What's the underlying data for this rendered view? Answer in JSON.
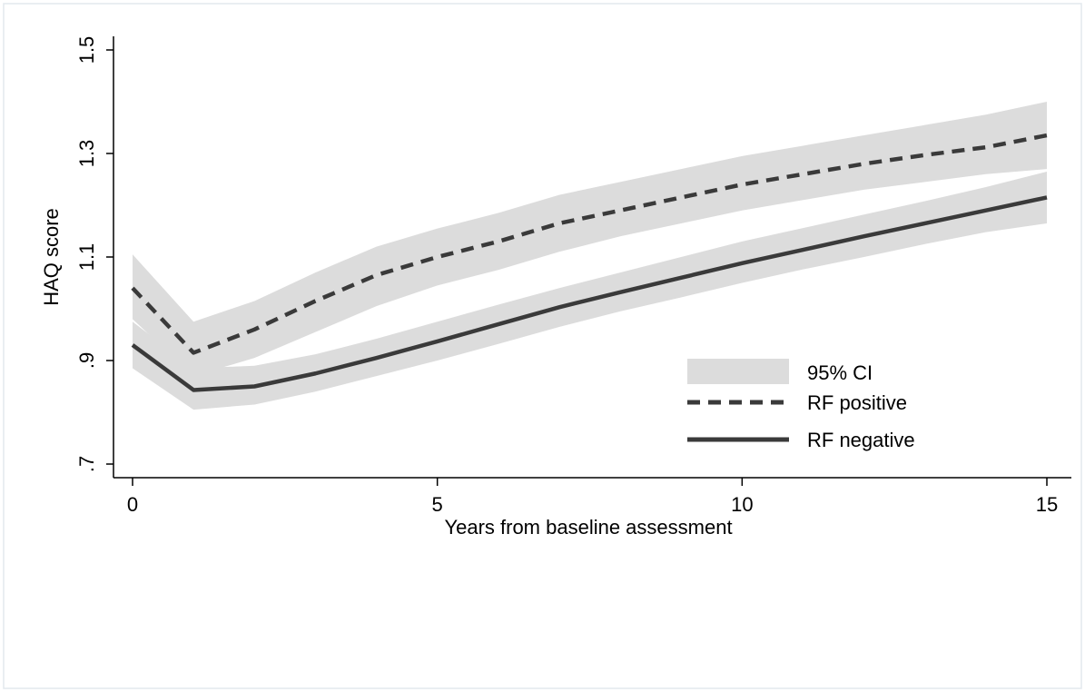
{
  "chart_data": {
    "type": "line",
    "xlabel": "Years from baseline assessment",
    "ylabel": "HAQ score",
    "xlim": [
      0,
      15
    ],
    "ylim": [
      0.7,
      1.5
    ],
    "x_ticks": [
      0,
      5,
      10,
      15
    ],
    "x_tick_labels": [
      "0",
      "5",
      "10",
      "15"
    ],
    "y_ticks": [
      0.7,
      0.9,
      1.1,
      1.3,
      1.5
    ],
    "y_tick_labels": [
      ".7",
      ".9",
      "1.1",
      "1.3",
      "1.5"
    ],
    "grid": false,
    "legend_position": "inside-bottom-right",
    "ci_label": "95% CI",
    "ci_color": "#dcdcdc",
    "series": [
      {
        "name": "RF positive",
        "style": "dashed",
        "color": "#3a3a3a",
        "x": [
          0,
          1,
          2,
          3,
          4,
          5,
          6,
          7,
          8,
          9,
          10,
          11,
          12,
          13,
          14,
          15
        ],
        "y": [
          1.04,
          0.915,
          0.96,
          1.015,
          1.065,
          1.1,
          1.13,
          1.165,
          1.19,
          1.215,
          1.24,
          1.26,
          1.28,
          1.297,
          1.312,
          1.335
        ],
        "ci_lower": [
          0.98,
          0.87,
          0.905,
          0.955,
          1.005,
          1.045,
          1.075,
          1.11,
          1.14,
          1.165,
          1.19,
          1.21,
          1.23,
          1.245,
          1.26,
          1.27
        ],
        "ci_upper": [
          1.105,
          0.975,
          1.015,
          1.07,
          1.12,
          1.155,
          1.185,
          1.22,
          1.245,
          1.27,
          1.295,
          1.315,
          1.335,
          1.355,
          1.375,
          1.4
        ]
      },
      {
        "name": "RF negative",
        "style": "solid",
        "color": "#3a3a3a",
        "x": [
          0,
          1,
          2,
          3,
          4,
          5,
          6,
          7,
          8,
          9,
          10,
          11,
          12,
          13,
          14,
          15
        ],
        "y": [
          0.93,
          0.843,
          0.85,
          0.875,
          0.905,
          0.937,
          0.97,
          1.003,
          1.032,
          1.06,
          1.088,
          1.114,
          1.14,
          1.165,
          1.19,
          1.215
        ],
        "ci_lower": [
          0.885,
          0.805,
          0.815,
          0.84,
          0.87,
          0.9,
          0.932,
          0.965,
          0.995,
          1.022,
          1.05,
          1.076,
          1.1,
          1.125,
          1.148,
          1.165
        ],
        "ci_upper": [
          0.975,
          0.885,
          0.89,
          0.912,
          0.942,
          0.975,
          1.008,
          1.04,
          1.07,
          1.1,
          1.13,
          1.156,
          1.182,
          1.208,
          1.235,
          1.265
        ]
      }
    ]
  }
}
